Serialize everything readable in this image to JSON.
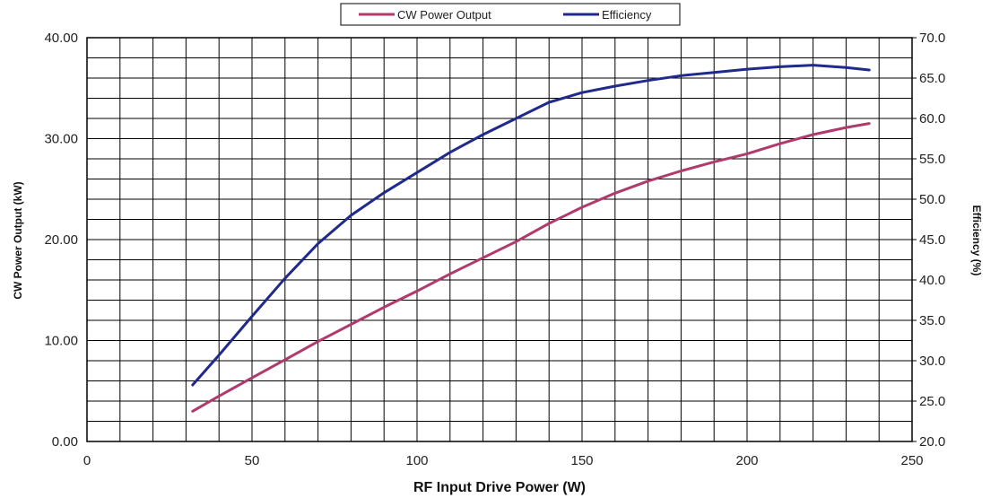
{
  "chart_data": {
    "type": "line",
    "xlabel": "RF Input Drive Power (W)",
    "ylabel": "CW Power Output (kW)",
    "y2label": "Efficiency (%)",
    "xlim": [
      0,
      250
    ],
    "ylim": [
      0,
      40
    ],
    "y2lim": [
      20,
      70
    ],
    "grid": true,
    "legend_position": "top-center",
    "x_ticks": [
      "0",
      "50",
      "100",
      "150",
      "200",
      "250"
    ],
    "y_ticks": [
      "0.00",
      "10.00",
      "20.00",
      "30.00",
      "40.00"
    ],
    "y2_ticks": [
      "20.0",
      "25.0",
      "30.0",
      "35.0",
      "40.0",
      "45.0",
      "50.0",
      "55.0",
      "60.0",
      "65.0",
      "70.0"
    ],
    "series": [
      {
        "name": "CW Power Output",
        "axis": "left",
        "color": "#b03a6c",
        "x": [
          32,
          40,
          50,
          60,
          70,
          80,
          90,
          100,
          110,
          120,
          130,
          140,
          150,
          160,
          170,
          180,
          190,
          200,
          210,
          220,
          230,
          237
        ],
        "y": [
          3.0,
          4.5,
          6.3,
          8.1,
          9.9,
          11.6,
          13.3,
          14.9,
          16.6,
          18.2,
          19.8,
          21.6,
          23.2,
          24.6,
          25.8,
          26.8,
          27.7,
          28.5,
          29.5,
          30.4,
          31.1,
          31.5
        ]
      },
      {
        "name": "Efficiency",
        "axis": "right",
        "color": "#1f2a8c",
        "x": [
          32,
          40,
          50,
          60,
          70,
          80,
          90,
          100,
          110,
          120,
          130,
          140,
          150,
          160,
          170,
          180,
          190,
          200,
          210,
          220,
          230,
          237
        ],
        "y": [
          27.0,
          30.7,
          35.5,
          40.2,
          44.5,
          48.0,
          50.8,
          53.3,
          55.8,
          58.0,
          60.0,
          62.0,
          63.2,
          64.0,
          64.7,
          65.3,
          65.7,
          66.1,
          66.4,
          66.6,
          66.3,
          66.0
        ]
      }
    ]
  }
}
